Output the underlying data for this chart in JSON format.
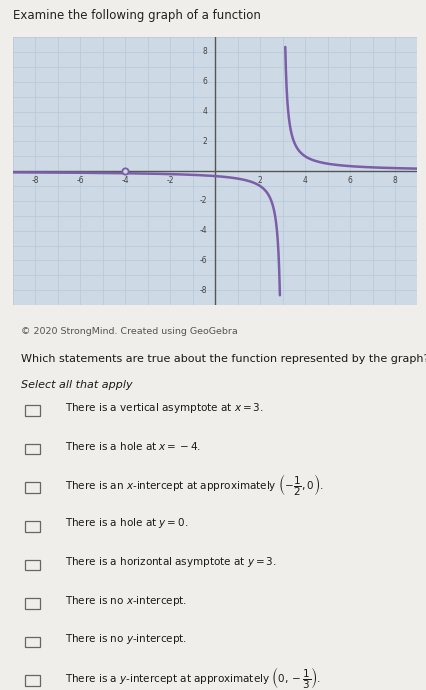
{
  "title": "Examine the following graph of a function",
  "copyright": "© 2020 StrongMind. Created using GeoGebra",
  "question": "Which statements are true about the function represented by the graph?",
  "instruction": "Select all that apply",
  "graph_bg": "#cdd9e5",
  "graph_line_color": "#7b5ea7",
  "asymptote_x": 3,
  "hole_x": -4,
  "hole_y": 0,
  "xlim": [
    -9,
    9
  ],
  "ylim": [
    -9,
    9
  ],
  "xticks": [
    -8,
    -6,
    -4,
    -2,
    2,
    4,
    6,
    8
  ],
  "yticks": [
    -8,
    -6,
    -4,
    -2,
    2,
    4,
    6,
    8
  ],
  "grid_color": "#b8c8d8",
  "axis_color": "#555555",
  "page_background": "#f0eeeb"
}
